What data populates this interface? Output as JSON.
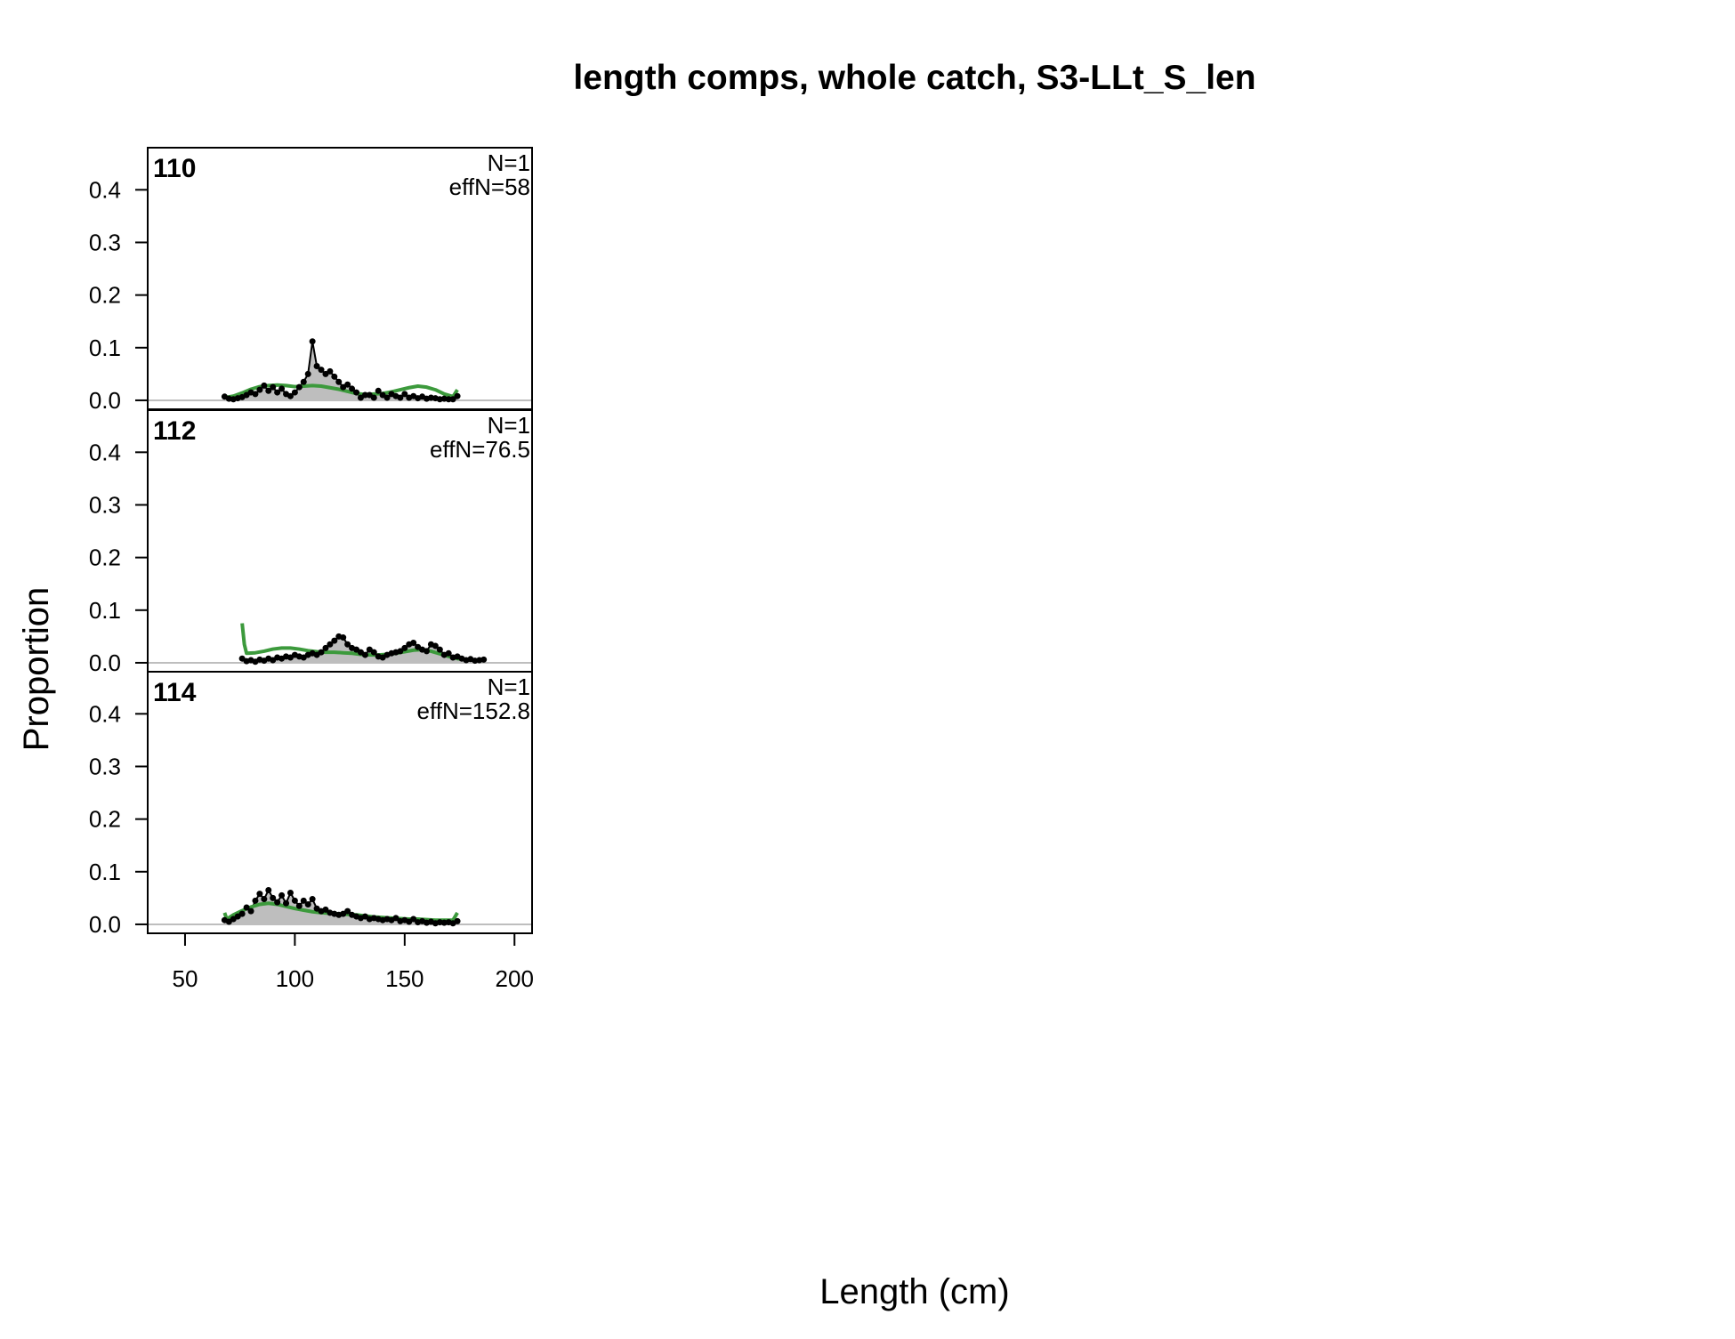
{
  "chart_data": {
    "type": "line",
    "title": "length comps, whole catch, S3-LLt_S_len",
    "xlabel": "Length (cm)",
    "ylabel": "Proportion",
    "xlim": [
      33,
      208
    ],
    "ylim": [
      -0.017,
      0.48
    ],
    "x_ticks": [
      50,
      100,
      150,
      200
    ],
    "x_tick_labels": [
      "50",
      "100",
      "150",
      "200"
    ],
    "y_ticks": [
      0.0,
      0.1,
      0.2,
      0.3,
      0.4
    ],
    "y_tick_labels": [
      "0.0",
      "0.1",
      "0.2",
      "0.3",
      "0.4"
    ],
    "colors": {
      "observed_fill": "#bebebe",
      "observed_points": "#000000",
      "expected_line": "#3c9a3c",
      "zero_line": "#bebebe"
    },
    "panels": [
      {
        "label": "110",
        "n_label": "N=1",
        "effn_label": "effN=58",
        "observed": {
          "x": [
            68,
            70,
            72,
            74,
            76,
            78,
            80,
            82,
            84,
            86,
            88,
            90,
            92,
            94,
            96,
            98,
            100,
            102,
            104,
            106,
            108,
            110,
            112,
            114,
            116,
            118,
            120,
            122,
            124,
            126,
            128,
            130,
            132,
            134,
            136,
            138,
            140,
            142,
            144,
            146,
            148,
            150,
            152,
            154,
            156,
            158,
            160,
            162,
            164,
            166,
            168,
            170,
            172,
            174
          ],
          "y": [
            0.007,
            0.003,
            0.002,
            0.004,
            0.006,
            0.01,
            0.015,
            0.012,
            0.02,
            0.028,
            0.018,
            0.025,
            0.015,
            0.022,
            0.012,
            0.008,
            0.015,
            0.025,
            0.035,
            0.05,
            0.112,
            0.065,
            0.058,
            0.05,
            0.055,
            0.045,
            0.035,
            0.025,
            0.03,
            0.022,
            0.015,
            0.005,
            0.01,
            0.01,
            0.005,
            0.018,
            0.01,
            0.005,
            0.012,
            0.008,
            0.005,
            0.012,
            0.005,
            0.008,
            0.004,
            0.007,
            0.003,
            0.005,
            0.004,
            0.002,
            0.003,
            0.002,
            0.002,
            0.008
          ]
        },
        "expected": {
          "x": [
            68,
            72,
            76,
            80,
            84,
            88,
            92,
            96,
            100,
            104,
            108,
            112,
            116,
            120,
            124,
            128,
            132,
            136,
            140,
            144,
            148,
            152,
            156,
            160,
            164,
            168,
            172,
            174
          ],
          "y": [
            0.005,
            0.008,
            0.014,
            0.021,
            0.026,
            0.028,
            0.029,
            0.028,
            0.026,
            0.027,
            0.028,
            0.027,
            0.024,
            0.021,
            0.017,
            0.013,
            0.011,
            0.012,
            0.013,
            0.016,
            0.02,
            0.024,
            0.027,
            0.025,
            0.02,
            0.012,
            0.007,
            0.02
          ]
        }
      },
      {
        "label": "112",
        "n_label": "N=1",
        "effn_label": "effN=76.5",
        "observed": {
          "x": [
            76,
            78,
            80,
            82,
            84,
            86,
            88,
            90,
            92,
            94,
            96,
            98,
            100,
            102,
            104,
            106,
            108,
            110,
            112,
            114,
            116,
            118,
            120,
            122,
            124,
            126,
            128,
            130,
            132,
            134,
            136,
            138,
            140,
            142,
            144,
            146,
            148,
            150,
            152,
            154,
            156,
            158,
            160,
            162,
            164,
            166,
            168,
            170,
            172,
            174,
            176,
            178,
            180,
            182,
            184,
            186
          ],
          "y": [
            0.008,
            0.003,
            0.005,
            0.002,
            0.006,
            0.004,
            0.008,
            0.005,
            0.01,
            0.008,
            0.012,
            0.01,
            0.015,
            0.012,
            0.01,
            0.015,
            0.018,
            0.015,
            0.02,
            0.028,
            0.035,
            0.042,
            0.05,
            0.048,
            0.035,
            0.028,
            0.025,
            0.02,
            0.015,
            0.025,
            0.02,
            0.012,
            0.01,
            0.015,
            0.018,
            0.02,
            0.022,
            0.028,
            0.035,
            0.038,
            0.03,
            0.025,
            0.022,
            0.035,
            0.032,
            0.025,
            0.015,
            0.018,
            0.01,
            0.012,
            0.008,
            0.005,
            0.007,
            0.004,
            0.005,
            0.006
          ]
        },
        "expected": {
          "x": [
            76,
            77,
            78,
            82,
            86,
            90,
            94,
            98,
            102,
            106,
            110,
            114,
            118,
            122,
            126,
            130,
            134,
            138,
            142,
            146,
            150,
            154,
            158,
            162,
            166,
            170,
            174,
            178,
            182,
            186
          ],
          "y": [
            0.075,
            0.035,
            0.018,
            0.019,
            0.022,
            0.026,
            0.028,
            0.028,
            0.026,
            0.023,
            0.021,
            0.02,
            0.02,
            0.019,
            0.018,
            0.016,
            0.015,
            0.015,
            0.016,
            0.018,
            0.021,
            0.024,
            0.025,
            0.022,
            0.017,
            0.012,
            0.008,
            0.006,
            0.005,
            0.005
          ]
        }
      },
      {
        "label": "114",
        "n_label": "N=1",
        "effn_label": "effN=152.8",
        "observed": {
          "x": [
            68,
            70,
            72,
            74,
            76,
            78,
            80,
            82,
            84,
            86,
            88,
            90,
            92,
            94,
            96,
            98,
            100,
            102,
            104,
            106,
            108,
            110,
            112,
            114,
            116,
            118,
            120,
            122,
            124,
            126,
            128,
            130,
            132,
            134,
            136,
            138,
            140,
            142,
            144,
            146,
            148,
            150,
            152,
            154,
            156,
            158,
            160,
            162,
            164,
            166,
            168,
            170,
            172,
            174
          ],
          "y": [
            0.008,
            0.005,
            0.01,
            0.015,
            0.02,
            0.032,
            0.025,
            0.045,
            0.058,
            0.048,
            0.065,
            0.05,
            0.042,
            0.055,
            0.04,
            0.06,
            0.045,
            0.035,
            0.045,
            0.038,
            0.048,
            0.03,
            0.025,
            0.028,
            0.022,
            0.02,
            0.018,
            0.02,
            0.025,
            0.018,
            0.015,
            0.012,
            0.015,
            0.01,
            0.012,
            0.01,
            0.008,
            0.01,
            0.008,
            0.012,
            0.006,
            0.008,
            0.005,
            0.01,
            0.004,
            0.006,
            0.003,
            0.005,
            0.002,
            0.004,
            0.003,
            0.004,
            0.002,
            0.006
          ]
        },
        "expected": {
          "x": [
            68,
            69,
            72,
            76,
            80,
            84,
            88,
            92,
            96,
            100,
            104,
            108,
            112,
            116,
            120,
            124,
            128,
            132,
            136,
            140,
            144,
            148,
            152,
            156,
            160,
            164,
            168,
            172,
            174
          ],
          "y": [
            0.022,
            0.01,
            0.018,
            0.026,
            0.033,
            0.038,
            0.04,
            0.038,
            0.034,
            0.03,
            0.027,
            0.024,
            0.022,
            0.021,
            0.02,
            0.019,
            0.018,
            0.016,
            0.014,
            0.013,
            0.012,
            0.011,
            0.01,
            0.01,
            0.009,
            0.008,
            0.008,
            0.008,
            0.022
          ]
        }
      }
    ]
  }
}
